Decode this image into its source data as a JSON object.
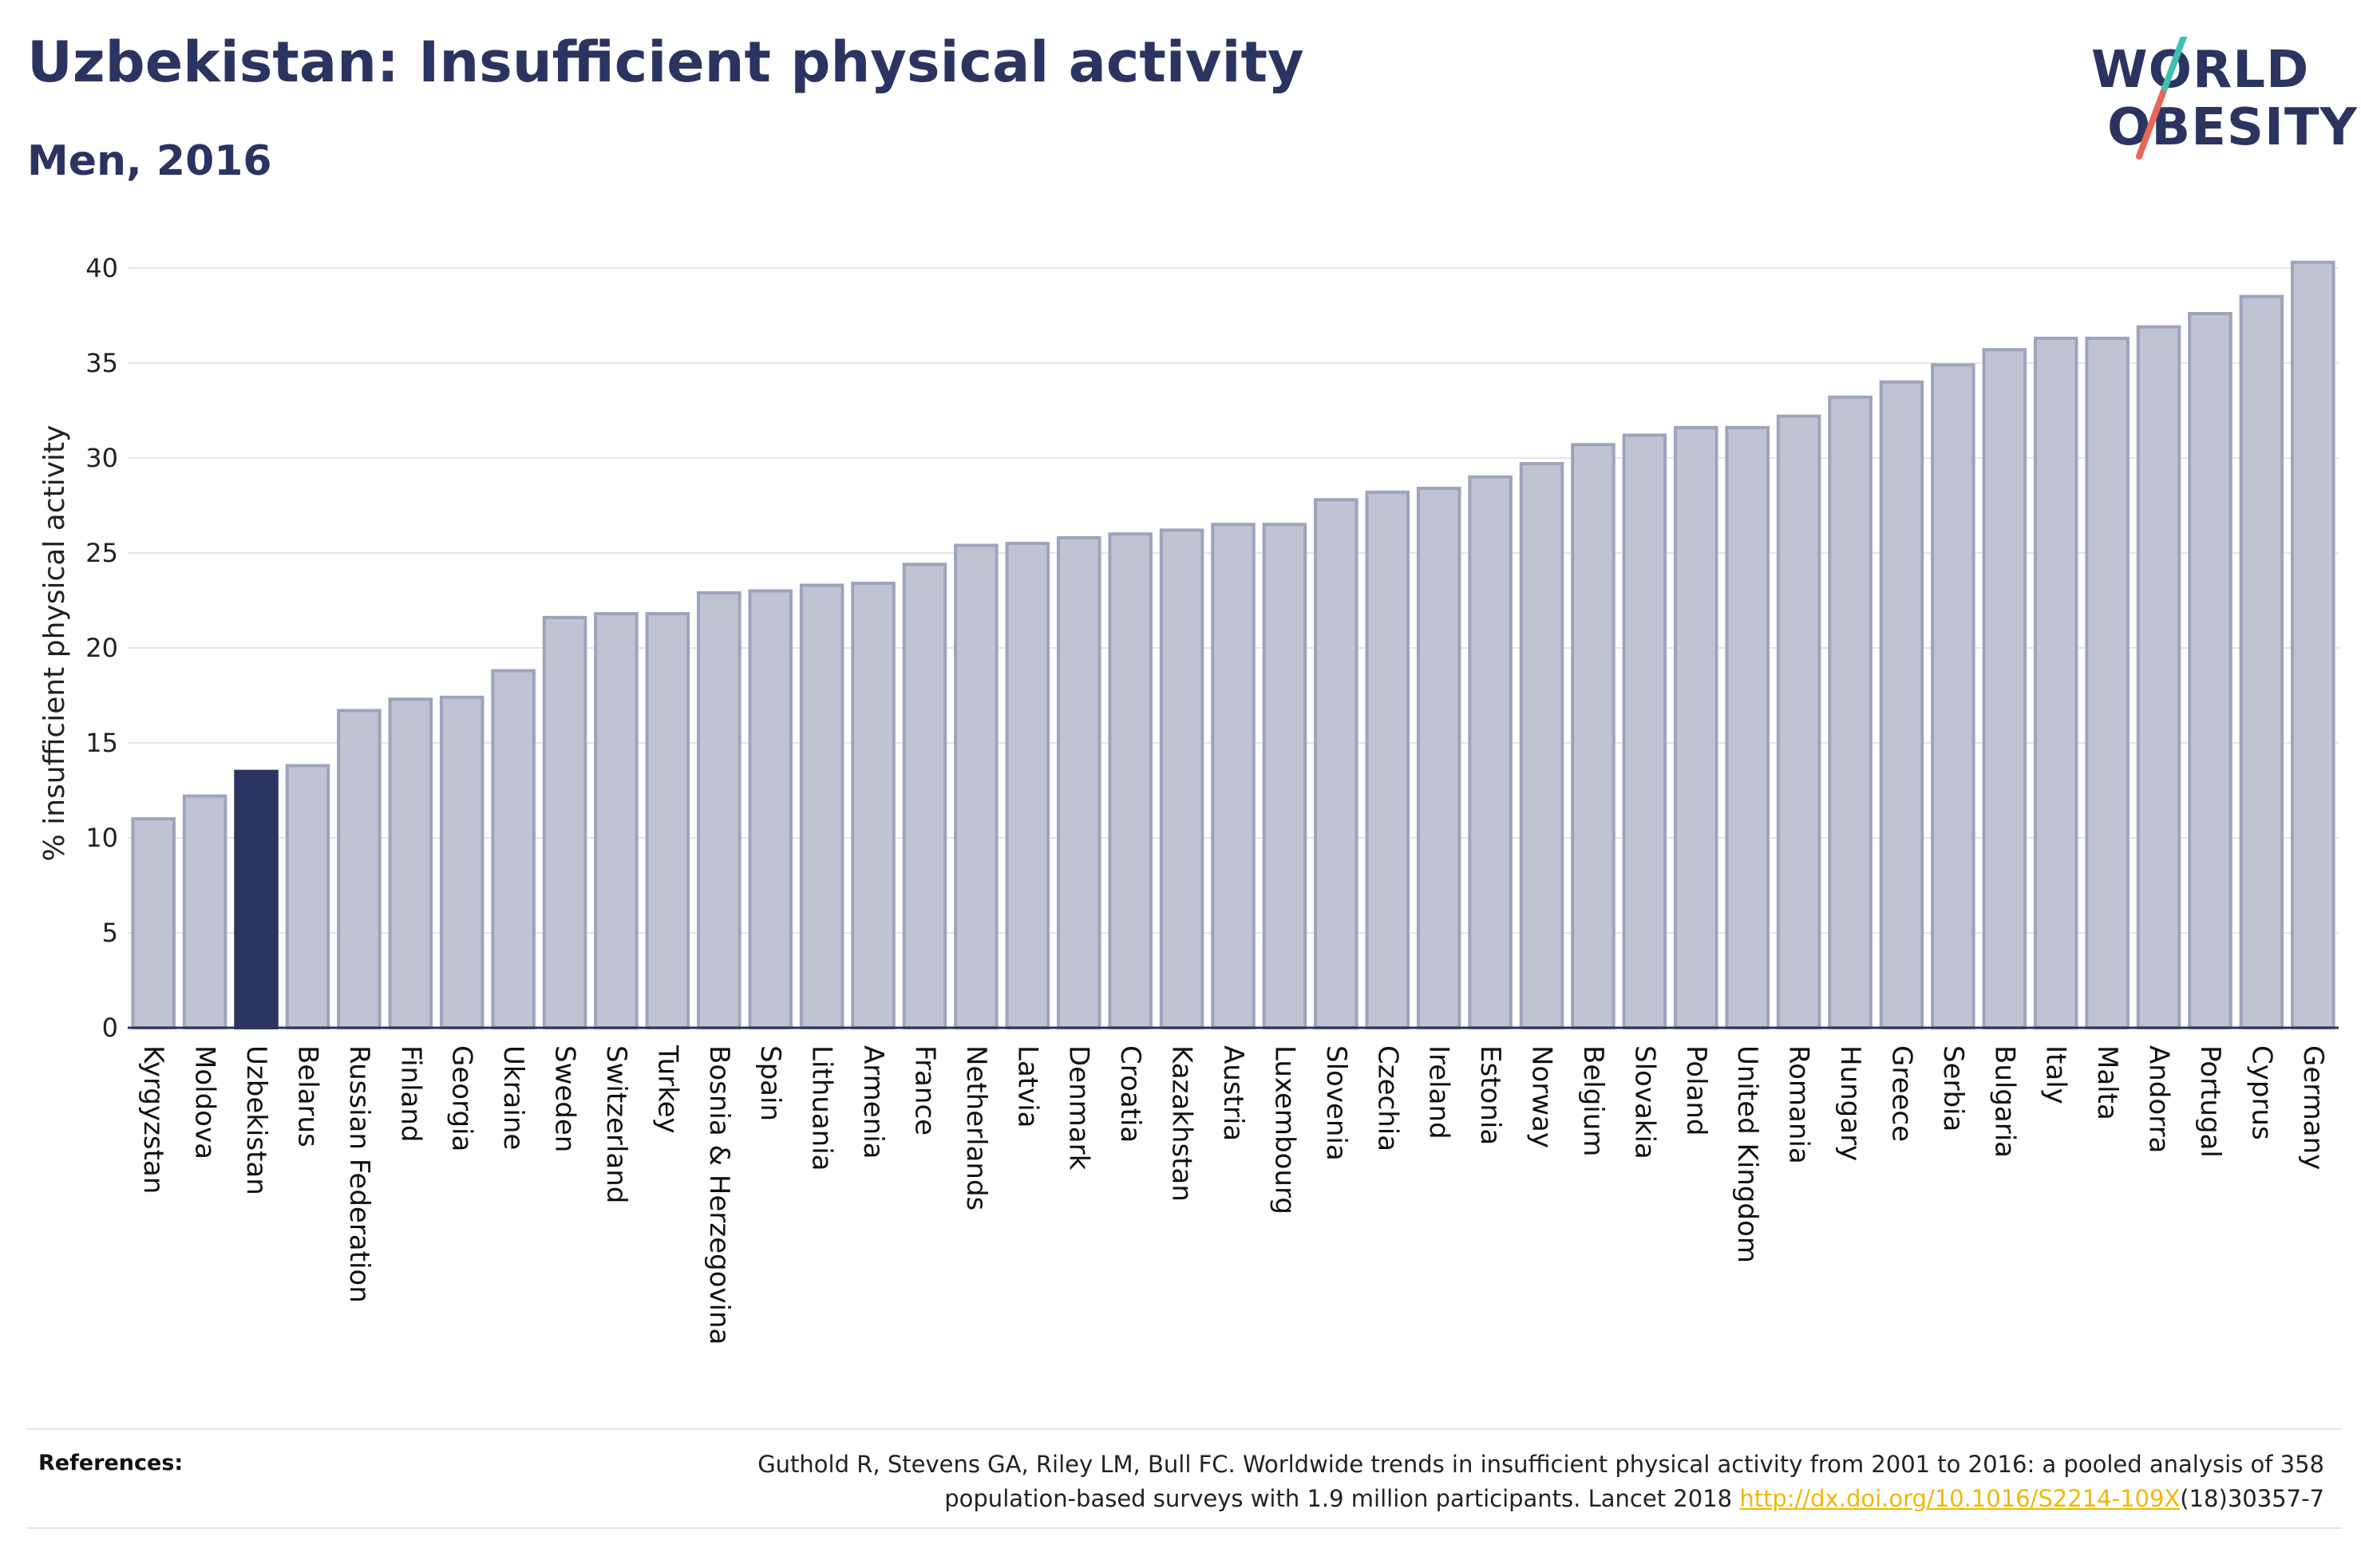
{
  "header": {
    "title": "Uzbekistan: Insufficient physical activity",
    "subtitle": "Men, 2016"
  },
  "logo": {
    "line1": "WORLD",
    "line2": "OBESITY",
    "slash_colors": [
      "#3fbfb0",
      "#e8665a"
    ]
  },
  "colors": {
    "bar": "#c0c4d2",
    "bar_border": "#9ea3bd",
    "highlight": "#2b3460",
    "grid": "#e6e6e6",
    "axis": "#2b3460",
    "link": "#f2b705"
  },
  "chart_data": {
    "type": "bar",
    "highlight": "Uzbekistan",
    "ylabel": "% insufficient physical activity",
    "ylim": [
      0,
      40.5
    ],
    "yticks": [
      0,
      5,
      10,
      15,
      20,
      25,
      30,
      35,
      40
    ],
    "grid": true,
    "categories": [
      "Kyrgyzstan",
      "Moldova",
      "Uzbekistan",
      "Belarus",
      "Russian Federation",
      "Finland",
      "Georgia",
      "Ukraine",
      "Sweden",
      "Switzerland",
      "Turkey",
      "Bosnia & Herzegovina",
      "Spain",
      "Lithuania",
      "Armenia",
      "France",
      "Netherlands",
      "Latvia",
      "Denmark",
      "Croatia",
      "Kazakhstan",
      "Austria",
      "Luxembourg",
      "Slovenia",
      "Czechia",
      "Ireland",
      "Estonia",
      "Norway",
      "Belgium",
      "Slovakia",
      "Poland",
      "United Kingdom",
      "Romania",
      "Hungary",
      "Greece",
      "Serbia",
      "Bulgaria",
      "Italy",
      "Malta",
      "Andorra",
      "Portugal",
      "Cyprus",
      "Germany"
    ],
    "values": [
      11.0,
      12.2,
      13.5,
      13.8,
      16.7,
      17.3,
      17.4,
      18.8,
      21.6,
      21.8,
      21.8,
      22.9,
      23.0,
      23.3,
      23.4,
      24.4,
      25.4,
      25.5,
      25.8,
      26.0,
      26.2,
      26.5,
      26.5,
      27.8,
      28.2,
      28.4,
      29.0,
      29.7,
      30.7,
      31.2,
      31.6,
      31.6,
      32.2,
      33.2,
      34.0,
      34.9,
      35.7,
      36.3,
      36.3,
      36.9,
      37.6,
      38.5,
      40.3
    ]
  },
  "references": {
    "label": "References:",
    "line1": "Guthold R, Stevens GA, Riley LM, Bull FC. Worldwide trends in insufficient physical activity from 2001 to 2016: a pooled analysis of 358",
    "line2_pre": "population-based surveys with 1.9 million participants. Lancet 2018 ",
    "link_text": "http://dx.doi.org/10.1016/S2214-109X",
    "line2_post": "(18)30357-7"
  }
}
